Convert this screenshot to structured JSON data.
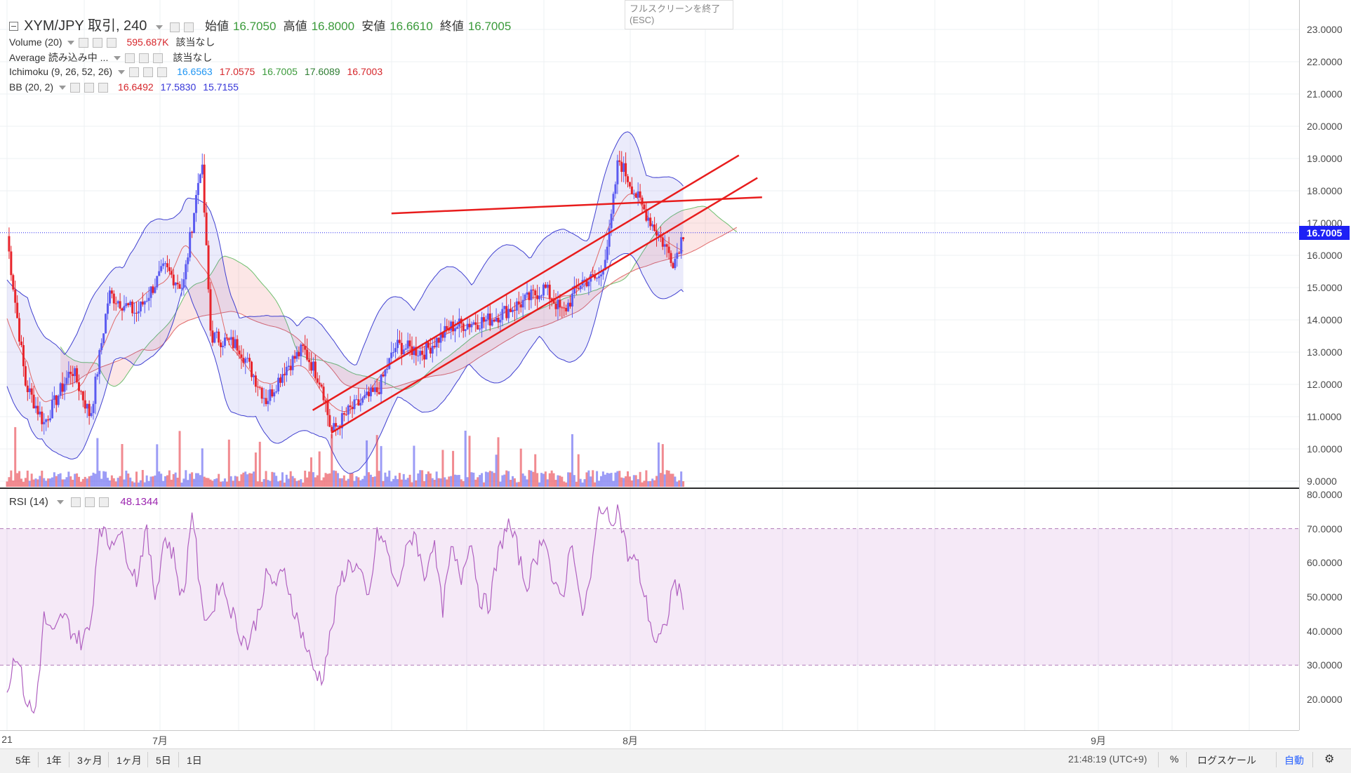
{
  "header": {
    "collapse_icon": "minus-box-icon",
    "symbol": "XYM/JPY 取引, 240",
    "open_label": "始値",
    "open_value": "16.7050",
    "high_label": "高値",
    "high_value": "16.8000",
    "low_label": "安値",
    "low_value": "16.6610",
    "close_label": "終値",
    "close_value": "16.7005"
  },
  "indicators": [
    {
      "label": "Volume (20)",
      "values": [
        {
          "v": "595.687K",
          "color": "#d6262b"
        },
        {
          "v": "該当なし",
          "color": "#333333"
        }
      ]
    },
    {
      "label": "Average 読み込み中 ...",
      "values": [
        {
          "v": "該当なし",
          "color": "#333333"
        }
      ]
    },
    {
      "label": "Ichimoku (9, 26, 52, 26)",
      "values": [
        {
          "v": "16.6563",
          "color": "#2196f3"
        },
        {
          "v": "17.0575",
          "color": "#d6262b"
        },
        {
          "v": "16.7005",
          "color": "#3a9a3a"
        },
        {
          "v": "17.6089",
          "color": "#2e7d32"
        },
        {
          "v": "16.7003",
          "color": "#d6262b"
        }
      ]
    },
    {
      "label": "BB (20, 2)",
      "values": [
        {
          "v": "16.6492",
          "color": "#d6262b"
        },
        {
          "v": "17.5830",
          "color": "#3535d8"
        },
        {
          "v": "15.7155",
          "color": "#3535d8"
        }
      ]
    }
  ],
  "rsi_legend": {
    "label": "RSI (14)",
    "value": "48.1344",
    "color": "#9c27b0"
  },
  "fullscreen_tip": {
    "line1": "フルスクリーンを終了",
    "line2": "(ESC)"
  },
  "last_price_tag": "16.7005",
  "timezone": "21:48:19 (UTC+9)",
  "ranges": [
    "5年",
    "1年",
    "3ヶ月",
    "1ヶ月",
    "5日",
    "1日"
  ],
  "right_controls": {
    "percent": "%",
    "log": "ログスケール",
    "auto": "自動",
    "settings_icon": "gear-icon"
  },
  "x_ticks": [
    {
      "label": "21",
      "x": 10
    },
    {
      "label": "7月",
      "x": 228
    },
    {
      "label": "8月",
      "x": 898
    },
    {
      "label": "9月",
      "x": 1565
    }
  ],
  "colors": {
    "up": "#5b5bf0",
    "down": "#e8242b",
    "trend": "#e81c1c",
    "rsi": "#b060c0",
    "bb": "#4040d0"
  },
  "chart_data": [
    {
      "type": "candlestick",
      "title": "XYM/JPY 取引, 240",
      "y_axis_ticks": [
        "23.0000",
        "22.0000",
        "21.0000",
        "20.0000",
        "19.0000",
        "18.0000",
        "17.0000",
        "16.0000",
        "15.0000",
        "14.0000",
        "13.0000",
        "12.0000",
        "11.0000",
        "10.0000",
        "9.0000"
      ],
      "ylim": [
        9.0,
        23.0
      ],
      "last_price": 16.7005,
      "price_path_approx": [
        [
          0,
          16.6
        ],
        [
          0.02,
          12.0
        ],
        [
          0.04,
          10.8
        ],
        [
          0.07,
          12.5
        ],
        [
          0.09,
          11.0
        ],
        [
          0.11,
          14.8
        ],
        [
          0.14,
          14.2
        ],
        [
          0.17,
          15.6
        ],
        [
          0.19,
          15.0
        ],
        [
          0.21,
          19.0
        ],
        [
          0.22,
          13.5
        ],
        [
          0.25,
          13.2
        ],
        [
          0.28,
          11.5
        ],
        [
          0.3,
          12.5
        ],
        [
          0.32,
          13.1
        ],
        [
          0.34,
          12.0
        ],
        [
          0.35,
          10.5
        ],
        [
          0.37,
          11.2
        ],
        [
          0.4,
          11.8
        ],
        [
          0.42,
          13.2
        ],
        [
          0.45,
          13.0
        ],
        [
          0.48,
          13.8
        ],
        [
          0.52,
          14.0
        ],
        [
          0.56,
          14.6
        ],
        [
          0.58,
          15.0
        ],
        [
          0.6,
          14.2
        ],
        [
          0.62,
          15.2
        ],
        [
          0.64,
          15.3
        ],
        [
          0.65,
          16.6
        ],
        [
          0.66,
          19.0
        ],
        [
          0.68,
          17.8
        ],
        [
          0.7,
          16.8
        ],
        [
          0.72,
          15.8
        ],
        [
          0.73,
          16.7
        ]
      ],
      "trend_lines": [
        {
          "from": [
            0.415,
            17.3
          ],
          "to": [
            0.815,
            17.8
          ]
        },
        {
          "from": [
            0.33,
            11.2
          ],
          "to": [
            0.79,
            19.1
          ]
        },
        {
          "from": [
            0.35,
            10.5
          ],
          "to": [
            0.81,
            18.4
          ]
        }
      ]
    },
    {
      "type": "line",
      "title": "RSI (14)",
      "y_axis_ticks": [
        "80.0000",
        "70.0000",
        "60.0000",
        "50.0000",
        "40.0000",
        "30.0000",
        "20.0000"
      ],
      "ylim": [
        13,
        80
      ],
      "bands": [
        30,
        70
      ],
      "last_value": 48.1344,
      "values_approx": [
        22,
        35,
        20,
        15,
        44,
        38,
        45,
        40,
        37,
        41,
        72,
        65,
        70,
        62,
        55,
        70,
        50,
        68,
        62,
        48,
        77,
        46,
        44,
        55,
        48,
        40,
        36,
        44,
        56,
        54,
        57,
        46,
        38,
        29,
        26,
        40,
        55,
        60,
        58,
        48,
        69,
        64,
        52,
        62,
        70,
        55,
        67,
        46,
        64,
        55,
        68,
        50,
        47,
        62,
        72,
        65,
        53,
        60,
        70,
        52,
        50,
        68,
        44,
        55,
        78,
        72,
        76,
        62,
        60,
        48,
        36,
        40,
        55,
        48
      ]
    }
  ]
}
